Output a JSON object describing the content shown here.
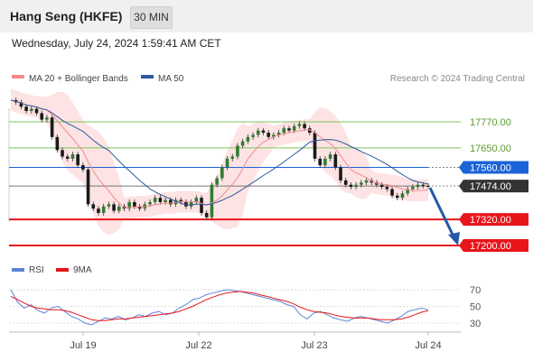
{
  "header": {
    "title": "Hang Seng (HKFE)",
    "interval": "30 MIN",
    "datetime": "Wednesday, July 24, 2024 1:59:41 AM CET"
  },
  "legend": {
    "bollinger_label": "MA 20 + Bollinger Bands",
    "ma50_label": "MA 50",
    "copyright": "Research © 2024 Trading Central",
    "rsi_label": "RSI",
    "rsi_ma_label": "9MA"
  },
  "colors": {
    "bollinger": "#f48a8a",
    "bollinger_fill": "#fde3e3",
    "ma50": "#2d5aa0",
    "green_levels": "#7cc45a",
    "red_levels": "#e8151b",
    "pivot": "#1b64d8",
    "current": "#333333",
    "arrow": "#2458a6",
    "rsi": "#5b84d6",
    "rsi_ma": "#e8151b"
  },
  "chart_data": [
    {
      "type": "candlestick",
      "title": "Hang Seng (HKFE)",
      "interval": "30 MIN",
      "x_tick_labels": [
        "Jul 19",
        "Jul 22",
        "Jul 23",
        "Jul 24"
      ],
      "ylim": [
        17120,
        17900
      ],
      "series": [
        {
          "name": "MA 20 + Bollinger Bands"
        },
        {
          "name": "MA 50"
        }
      ],
      "price_series_approx": [
        17870,
        17860,
        17840,
        17820,
        17830,
        17810,
        17780,
        17790,
        17700,
        17640,
        17610,
        17600,
        17620,
        17570,
        17550,
        17390,
        17370,
        17350,
        17380,
        17390,
        17360,
        17380,
        17370,
        17400,
        17380,
        17370,
        17390,
        17400,
        17420,
        17400,
        17410,
        17390,
        17410,
        17400,
        17380,
        17400,
        17420,
        17350,
        17330,
        17480,
        17510,
        17560,
        17600,
        17610,
        17660,
        17680,
        17700,
        17710,
        17730,
        17720,
        17700,
        17710,
        17720,
        17740,
        17730,
        17750,
        17760,
        17740,
        17720,
        17600,
        17570,
        17600,
        17620,
        17560,
        17500,
        17480,
        17470,
        17480,
        17490,
        17500,
        17490,
        17480,
        17470,
        17460,
        17430,
        17420,
        17440,
        17460,
        17470,
        17480,
        17475,
        17474
      ],
      "levels": [
        {
          "label": "17770.00",
          "value": 17770,
          "kind": "resistance"
        },
        {
          "label": "17650.00",
          "value": 17650,
          "kind": "resistance"
        },
        {
          "label": "17560.00",
          "value": 17560,
          "kind": "pivot"
        },
        {
          "label": "17474.00",
          "value": 17474,
          "kind": "current"
        },
        {
          "label": "17320.00",
          "value": 17320,
          "kind": "support"
        },
        {
          "label": "17200.00",
          "value": 17200,
          "kind": "support"
        }
      ],
      "projection": {
        "from": 17474,
        "to": 17200,
        "direction": "down"
      }
    },
    {
      "type": "line",
      "title": "RSI",
      "ylim": [
        15,
        80
      ],
      "y_tick_labels": [
        "70",
        "50",
        "30"
      ],
      "series": [
        {
          "name": "RSI",
          "values": [
            70,
            55,
            48,
            52,
            45,
            42,
            48,
            50,
            44,
            38,
            35,
            30,
            28,
            32,
            36,
            35,
            38,
            34,
            36,
            40,
            38,
            42,
            44,
            40,
            42,
            48,
            52,
            58,
            60,
            64,
            66,
            68,
            70,
            69,
            68,
            66,
            64,
            62,
            60,
            58,
            56,
            52,
            50,
            40,
            35,
            42,
            44,
            40,
            36,
            34,
            32,
            36,
            38,
            36,
            34,
            32,
            30,
            34,
            38,
            44,
            46,
            48,
            46
          ]
        },
        {
          "name": "9MA",
          "values": [
            62,
            58,
            54,
            50,
            48,
            47,
            46,
            46,
            45,
            43,
            40,
            37,
            34,
            33,
            33,
            34,
            35,
            35,
            36,
            37,
            38,
            39,
            40,
            41,
            42,
            44,
            47,
            50,
            54,
            58,
            61,
            64,
            66,
            67,
            68,
            67,
            66,
            64,
            62,
            60,
            58,
            56,
            53,
            49,
            46,
            44,
            43,
            42,
            40,
            38,
            37,
            36,
            36,
            36,
            35,
            34,
            34,
            34,
            35,
            37,
            40,
            43,
            45
          ]
        }
      ]
    }
  ]
}
